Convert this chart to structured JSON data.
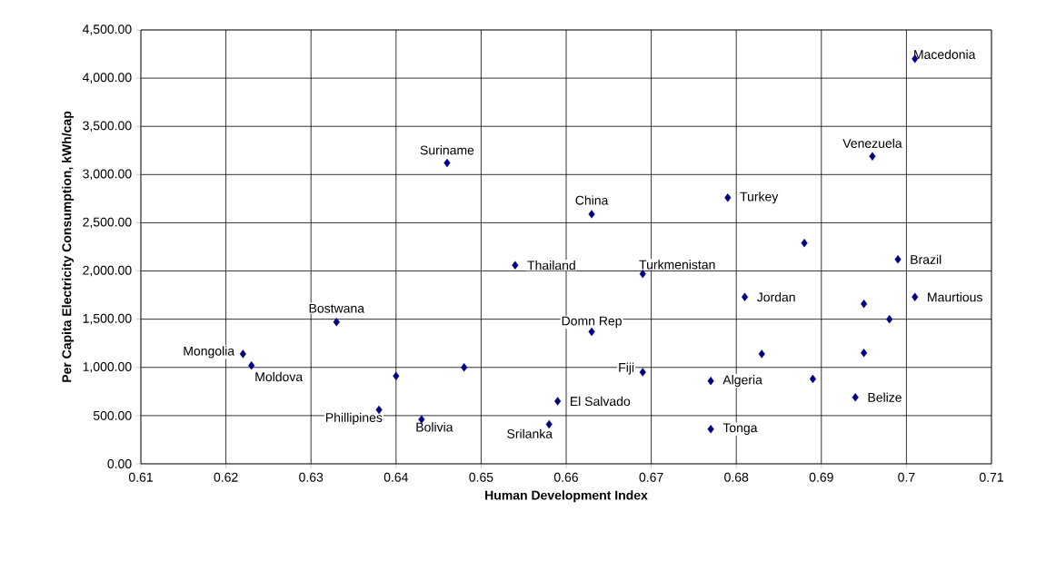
{
  "chart_data": {
    "type": "scatter",
    "xlabel": "Human Development Index",
    "ylabel": "Per Capita Electricity Consumption, kWh/cap",
    "x": [
      0.701,
      0.696,
      0.646,
      0.663,
      0.679,
      0.688,
      0.699,
      0.654,
      0.669,
      0.681,
      0.701,
      0.695,
      0.633,
      0.698,
      0.663,
      0.622,
      0.623,
      0.683,
      0.695,
      0.64,
      0.648,
      0.669,
      0.677,
      0.689,
      0.694,
      0.659,
      0.638,
      0.643,
      0.658,
      0.677
    ],
    "values": [
      4200,
      3190,
      3120,
      2590,
      2760,
      2290,
      2120,
      2060,
      1970,
      1730,
      1730,
      1660,
      1470,
      1500,
      1370,
      1140,
      1020,
      1140,
      1150,
      910,
      1000,
      950,
      860,
      880,
      690,
      650,
      560,
      460,
      410,
      360
    ],
    "color": "#000080",
    "marker": "diamond",
    "grid": true,
    "xlim": [
      0.61,
      0.71
    ],
    "xticks": [
      0.61,
      0.62,
      0.63,
      0.64,
      0.65,
      0.66,
      0.67,
      0.68,
      0.69,
      0.7,
      0.71
    ],
    "ylim": [
      0,
      4500
    ],
    "yticks": [
      {
        "value": 0,
        "label": "0.00"
      },
      {
        "value": 500,
        "label": "500.00"
      },
      {
        "value": 1000,
        "label": "1,000.00"
      },
      {
        "value": 1500,
        "label": "1,500.00"
      },
      {
        "value": 2000,
        "label": "2,000.00"
      },
      {
        "value": 2500,
        "label": "2,500.00"
      },
      {
        "value": 3000,
        "label": "3,000.00"
      },
      {
        "value": 3500,
        "label": "3,500.00"
      },
      {
        "value": 4000,
        "label": "4,000.00"
      },
      {
        "value": 4500,
        "label": "4,500.00"
      }
    ],
    "annotations": [
      {
        "text": "Macedonia",
        "x": 0.701,
        "y": 4200
      },
      {
        "text": "Venezuela",
        "x": 0.696,
        "y": 3190
      },
      {
        "text": "Suriname",
        "x": 0.646,
        "y": 3120
      },
      {
        "text": "China",
        "x": 0.663,
        "y": 2590
      },
      {
        "text": "Turkey",
        "x": 0.679,
        "y": 2760
      },
      {
        "text": "Brazil",
        "x": 0.699,
        "y": 2120
      },
      {
        "text": "Thailand",
        "x": 0.654,
        "y": 2060
      },
      {
        "text": "Turkmenistan",
        "x": 0.669,
        "y": 1970
      },
      {
        "text": "Jordan",
        "x": 0.681,
        "y": 1730
      },
      {
        "text": "Maurtious",
        "x": 0.701,
        "y": 1730
      },
      {
        "text": "Bostwana",
        "x": 0.633,
        "y": 1470
      },
      {
        "text": "Domn Rep",
        "x": 0.663,
        "y": 1370
      },
      {
        "text": "Mongolia",
        "x": 0.622,
        "y": 1140
      },
      {
        "text": "Moldova",
        "x": 0.623,
        "y": 1020
      },
      {
        "text": "Fiji",
        "x": 0.669,
        "y": 950
      },
      {
        "text": "Algeria",
        "x": 0.677,
        "y": 860
      },
      {
        "text": "Belize",
        "x": 0.694,
        "y": 690
      },
      {
        "text": "El Salvado",
        "x": 0.659,
        "y": 650
      },
      {
        "text": "Phillipines",
        "x": 0.638,
        "y": 560
      },
      {
        "text": "Bolivia",
        "x": 0.643,
        "y": 460
      },
      {
        "text": "Srilanka",
        "x": 0.658,
        "y": 410
      },
      {
        "text": "Tonga",
        "x": 0.677,
        "y": 360
      }
    ]
  }
}
